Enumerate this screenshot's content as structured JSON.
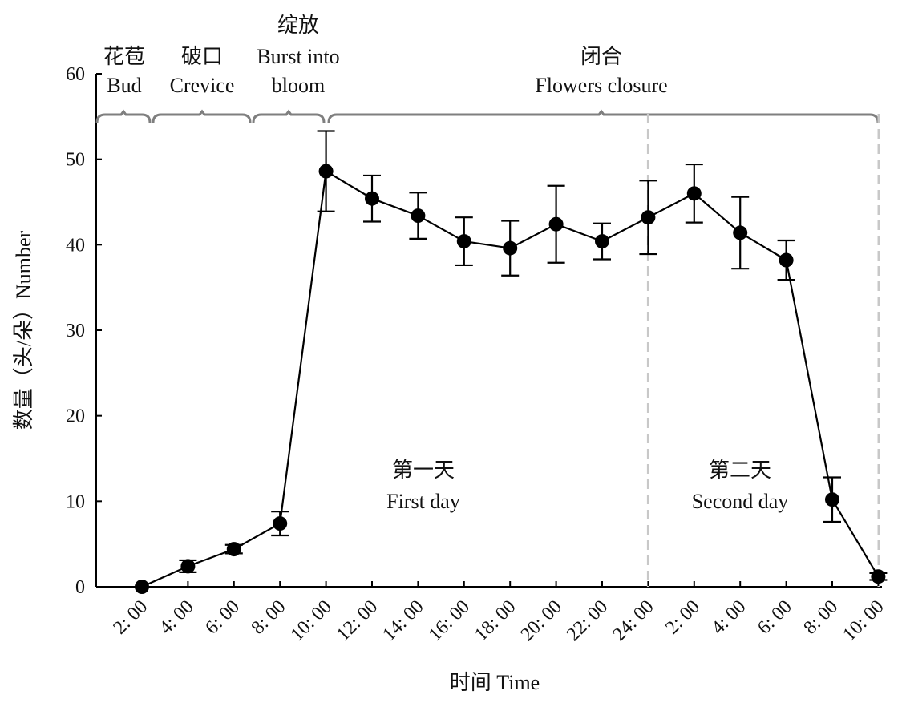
{
  "chart_data": {
    "type": "line",
    "title": "",
    "xlabel": "时间 Time",
    "ylabel": "数量（头/朵）Number",
    "ylim": [
      0,
      60
    ],
    "yticks": [
      0,
      10,
      20,
      30,
      40,
      50,
      60
    ],
    "categories": [
      "2: 00",
      "4: 00",
      "6: 00",
      "8: 00",
      "10: 00",
      "12: 00",
      "14: 00",
      "16: 00",
      "18: 00",
      "20: 00",
      "22: 00",
      "24: 00",
      "2: 00",
      "4: 00",
      "6: 00",
      "8: 00",
      "10: 00"
    ],
    "series": [
      {
        "values": [
          0.0,
          2.4,
          4.4,
          7.4,
          48.6,
          45.4,
          43.4,
          40.4,
          39.6,
          42.4,
          40.4,
          43.2,
          46.0,
          41.4,
          38.2,
          10.2,
          1.2
        ],
        "errors": [
          0.0,
          0.7,
          0.5,
          1.4,
          4.7,
          2.7,
          2.7,
          2.8,
          3.2,
          4.5,
          2.1,
          4.3,
          3.4,
          4.2,
          2.3,
          2.6,
          0.4
        ]
      }
    ],
    "phases": [
      {
        "zh": "花苞",
        "en": "Bud"
      },
      {
        "zh": "破口",
        "en": "Crevice"
      },
      {
        "zh": "绽放",
        "en": "Burst into",
        "en2": "bloom"
      },
      {
        "zh": "闭合",
        "en": "Flowers closure"
      }
    ],
    "days": [
      {
        "zh": "第一天",
        "en": "First day"
      },
      {
        "zh": "第二天",
        "en": "Second day"
      }
    ],
    "colors": {
      "line": "#000000",
      "brace": "#7f7f7f",
      "divider": "#c8c8c8"
    },
    "grid": false,
    "legend": "none"
  }
}
